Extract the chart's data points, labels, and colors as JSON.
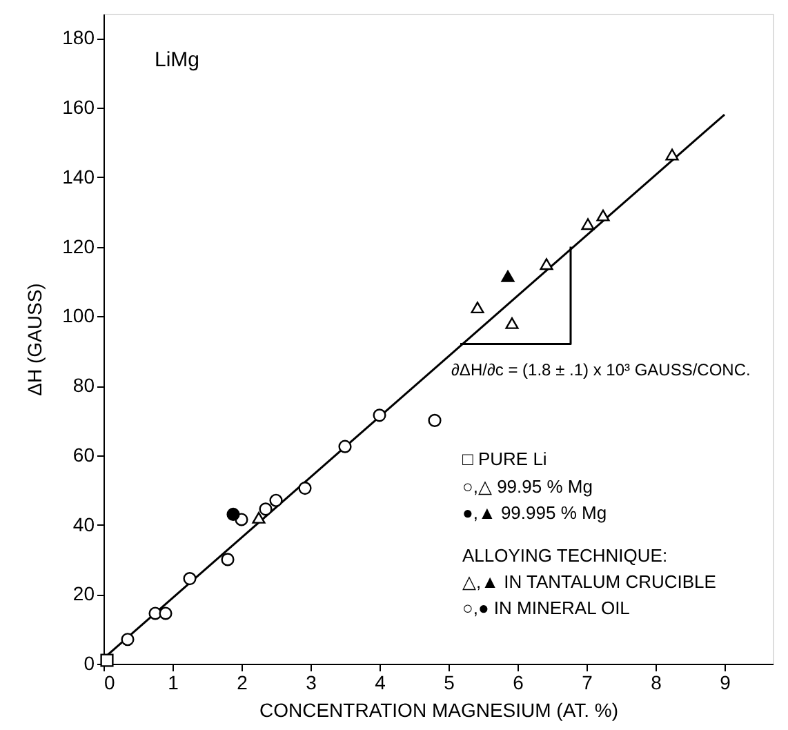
{
  "chart_data": {
    "type": "scatter",
    "xlabel": "CONCENTRATION MAGNESIUM (AT. %)",
    "ylabel": "ΔH (GAUSS)",
    "xlim": [
      0,
      9.7
    ],
    "ylim": [
      0,
      187
    ],
    "xticks": [
      0,
      1,
      2,
      3,
      4,
      5,
      6,
      7,
      8,
      9
    ],
    "yticks": [
      0,
      20,
      40,
      60,
      80,
      100,
      120,
      140,
      160,
      180
    ],
    "grid": false,
    "series": [
      {
        "type": "line",
        "color": "#000000",
        "x": [
          0,
          9.0
        ],
        "values": [
          1.5,
          158
        ]
      },
      {
        "type": "line",
        "color": "#000000",
        "x": [
          5.17,
          6.77,
          6.77
        ],
        "values": [
          92,
          92,
          120
        ]
      },
      {
        "type": "scatter",
        "marker": "square",
        "color": "#ffffff",
        "x": [
          0.05
        ],
        "values": [
          1
        ]
      },
      {
        "type": "scatter",
        "marker": "circle",
        "color": "#ffffff",
        "x": [
          0.35,
          0.75,
          0.9,
          1.25,
          1.8,
          2.0,
          2.35,
          2.5,
          2.92,
          3.5,
          4.0,
          4.8
        ],
        "values": [
          7,
          14.5,
          14.5,
          24.5,
          30,
          41.5,
          44.5,
          47,
          50.5,
          62.5,
          71.5,
          70
        ]
      },
      {
        "type": "scatter",
        "marker": "circle",
        "color": "#000000",
        "x": [
          1.88
        ],
        "values": [
          43
        ]
      },
      {
        "type": "scatter",
        "marker": "triangle",
        "color": "#ffffff",
        "x": [
          2.25,
          5.42,
          5.92,
          6.42,
          7.02,
          7.24,
          8.24
        ],
        "values": [
          42,
          102.5,
          98,
          115,
          126.5,
          129,
          146.5
        ]
      },
      {
        "type": "scatter",
        "marker": "triangle",
        "color": "#000000",
        "x": [
          5.86
        ],
        "values": [
          111.5
        ]
      }
    ],
    "annotations": [
      "LiMg",
      "∂ΔH/∂c = (1.8 ± .1) x 10³ GAUSS/CONC.",
      "□ PURE Li",
      "○,△ 99.95 % Mg",
      "●,▲ 99.995 % Mg",
      "ALLOYING TECHNIQUE:",
      "△,▲ IN TANTALUM CRUCIBLE",
      "○,● IN MINERAL OIL"
    ]
  }
}
